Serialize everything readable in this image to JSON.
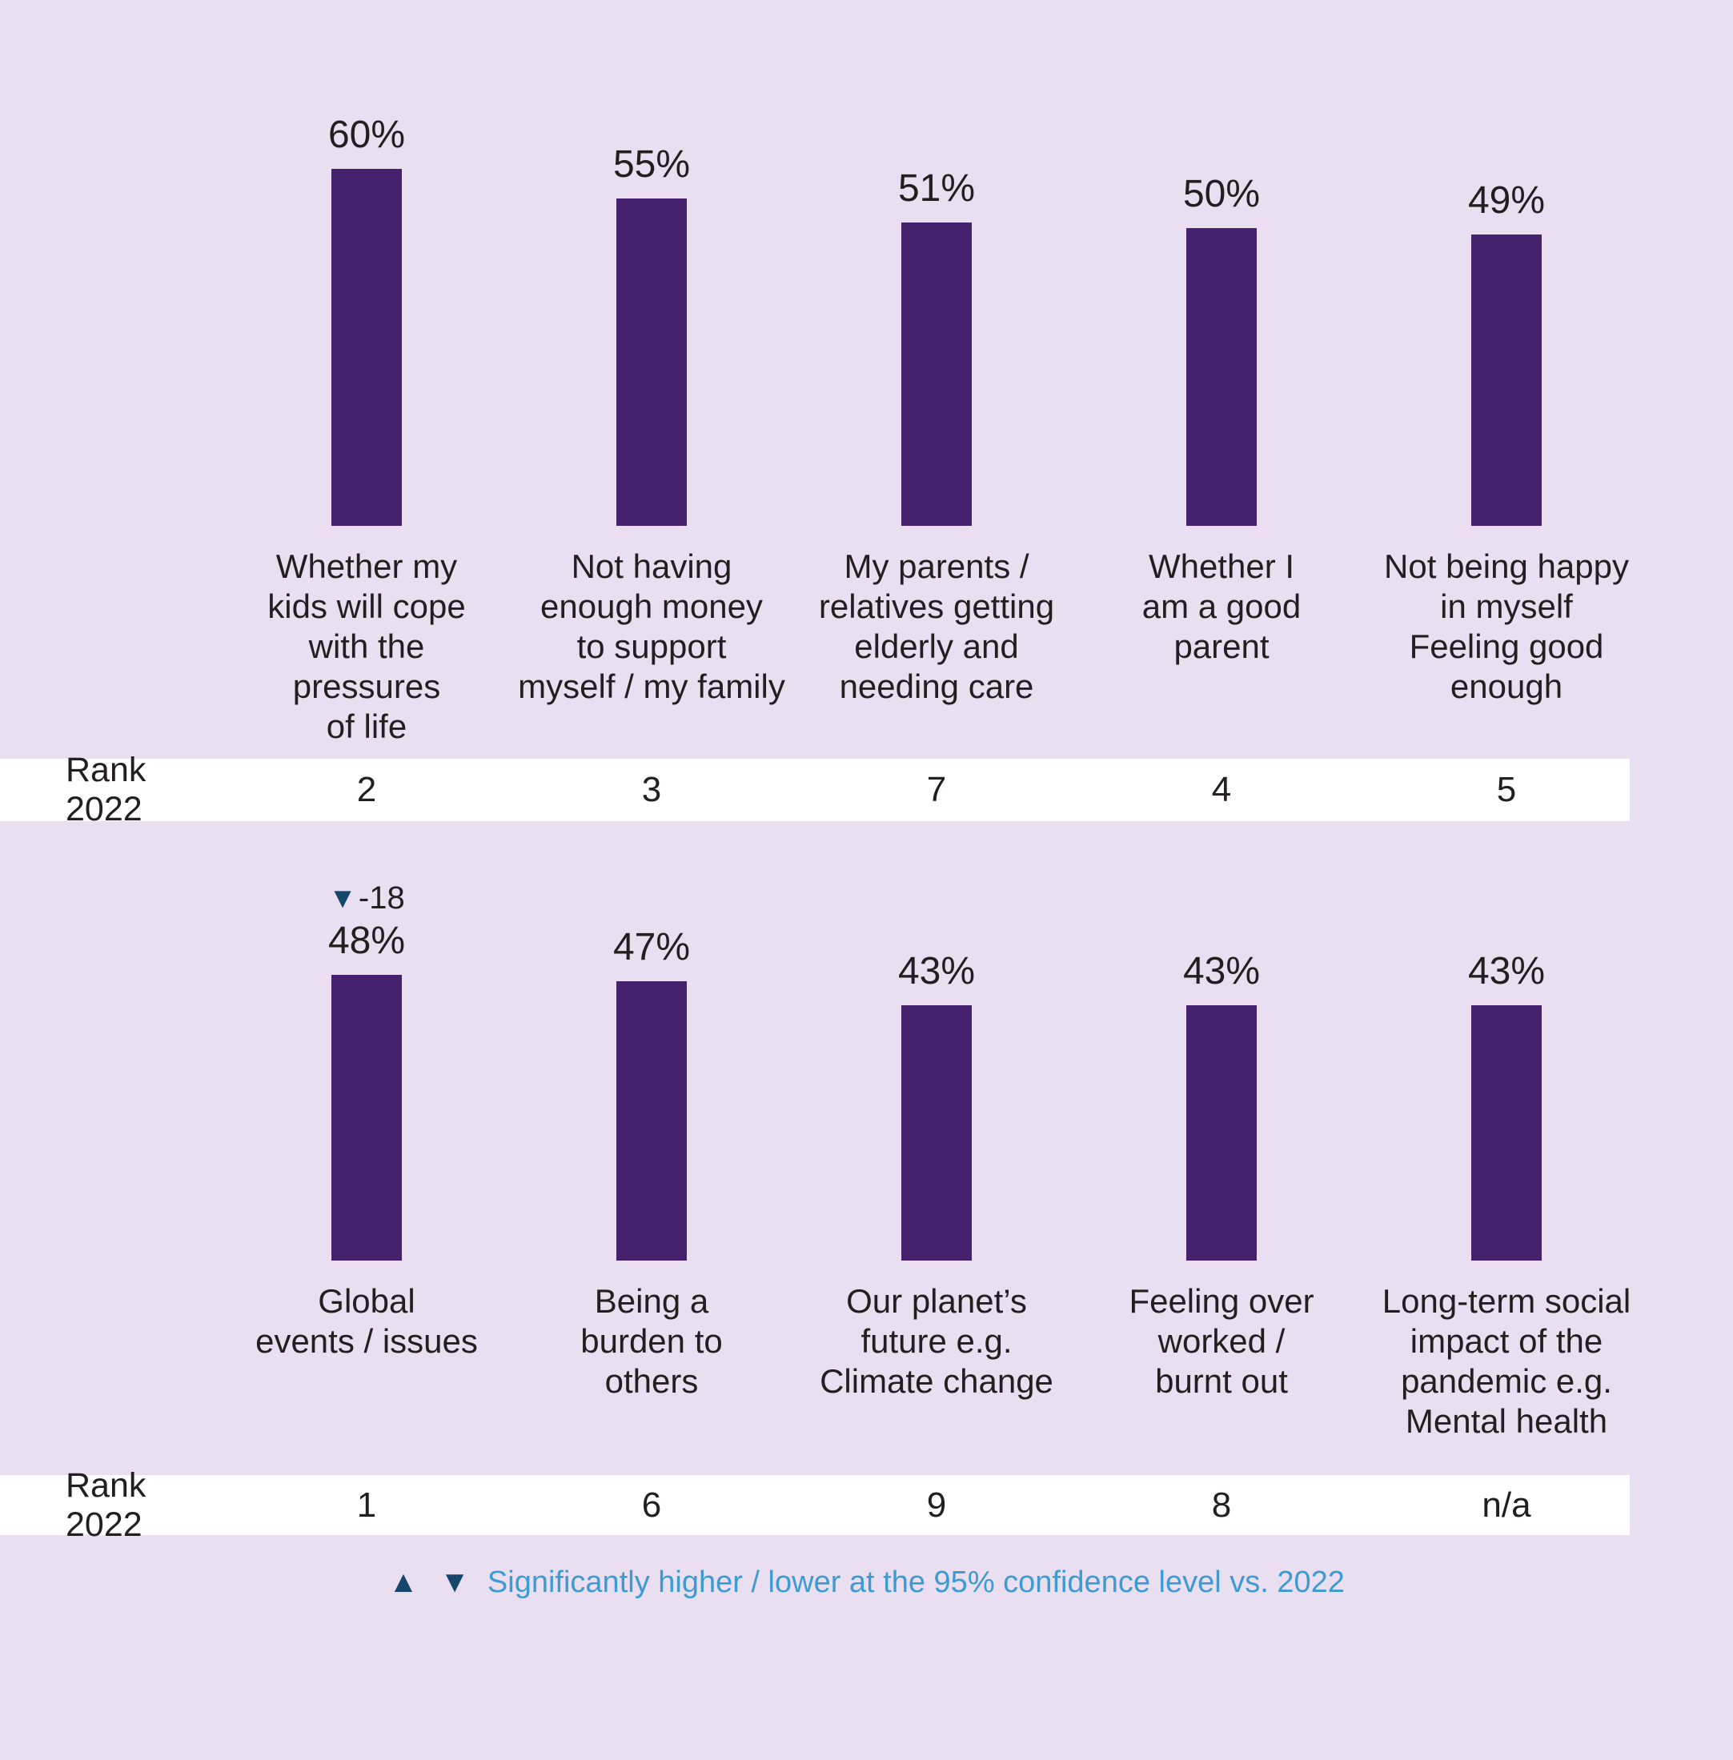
{
  "colors": {
    "background": "#E9DFF1",
    "bar": "#46216E",
    "rank_band_background": "#FFFFFF",
    "text": "#231F20",
    "footnote_text": "#3D9BD1",
    "significance_marker": "#15466B"
  },
  "chart_data": {
    "type": "bar",
    "unit": "%",
    "ylim": [
      0,
      65
    ],
    "grid": false,
    "rank_row_label": "Rank 2022",
    "marker_up": "▲",
    "marker_down": "▼",
    "rows": [
      {
        "items": [
          {
            "label": "Whether my\nkids will cope\nwith the\npressures\nof life",
            "value": 60,
            "rank_2022": "2"
          },
          {
            "label": "Not having\nenough money\nto support\nmyself / my family",
            "value": 55,
            "rank_2022": "3"
          },
          {
            "label": "My parents /\nrelatives getting\nelderly and\nneeding care",
            "value": 51,
            "rank_2022": "7"
          },
          {
            "label": "Whether I\nam a good\nparent",
            "value": 50,
            "rank_2022": "4"
          },
          {
            "label": "Not being happy\nin myself\nFeeling good\nenough",
            "value": 49,
            "rank_2022": "5"
          }
        ]
      },
      {
        "items": [
          {
            "label": "Global\nevents / issues",
            "value": 48,
            "rank_2022": "1",
            "change": "-18",
            "change_direction": "down"
          },
          {
            "label": "Being a\nburden to\nothers",
            "value": 47,
            "rank_2022": "6"
          },
          {
            "label": "Our planet’s\nfuture e.g.\nClimate change",
            "value": 43,
            "rank_2022": "9"
          },
          {
            "label": "Feeling over\nworked /\nburnt out",
            "value": 43,
            "rank_2022": "8"
          },
          {
            "label": "Long-term social\nimpact of the\npandemic e.g.\nMental health",
            "value": 43,
            "rank_2022": "n/a"
          }
        ]
      }
    ],
    "footnote": "Significantly higher / lower at the 95% confidence level vs. 2022"
  }
}
